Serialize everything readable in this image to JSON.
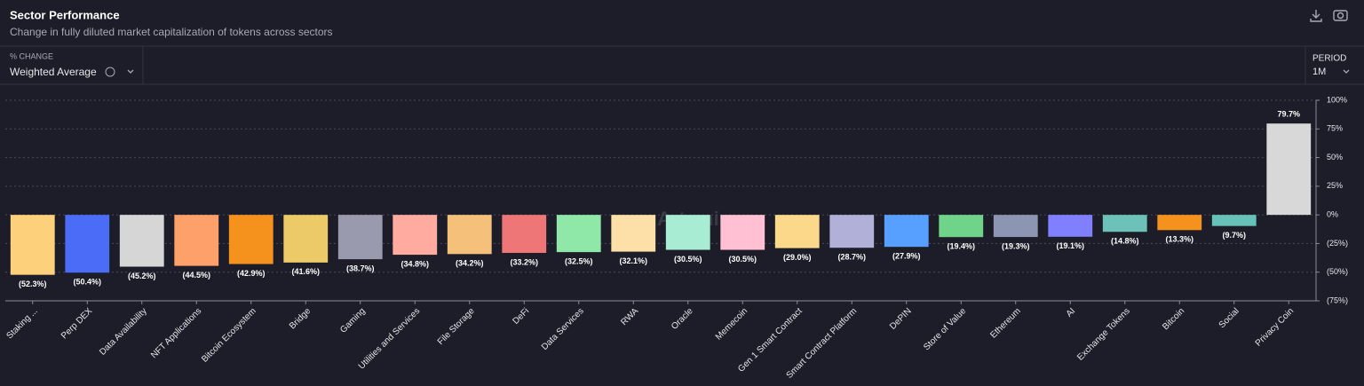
{
  "chart_data": {
    "type": "bar",
    "title": "Sector Performance",
    "subtitle": "Change in fully diluted market capitalization of tokens across sectors",
    "watermark": "Artemis",
    "categories": [
      "Staking ...",
      "Perp DEX",
      "Data Availability",
      "NFT Applications",
      "Bitcoin Ecosystem",
      "Bridge",
      "Gaming",
      "Utilities and Services",
      "File Storage",
      "DeFi",
      "Data Services",
      "RWA",
      "Oracle",
      "Memecoin",
      "Gen 1 Smart Contract",
      "Smart Contract Platform",
      "DePIN",
      "Store of Value",
      "Ethereum",
      "AI",
      "Exchange Tokens",
      "Bitcoin",
      "Social",
      "Privacy Coin"
    ],
    "values": [
      -52.3,
      -50.4,
      -45.2,
      -44.5,
      -42.9,
      -41.6,
      -38.7,
      -34.8,
      -34.2,
      -33.2,
      -32.5,
      -32.1,
      -30.5,
      -30.5,
      -29.0,
      -28.7,
      -27.9,
      -19.4,
      -19.3,
      -19.1,
      -14.8,
      -13.3,
      -9.7,
      79.7
    ],
    "value_labels": [
      "(52.3%)",
      "(50.4%)",
      "(45.2%)",
      "(44.5%)",
      "(42.9%)",
      "(41.6%)",
      "(38.7%)",
      "(34.8%)",
      "(34.2%)",
      "(33.2%)",
      "(32.5%)",
      "(32.1%)",
      "(30.5%)",
      "(30.5%)",
      "(29.0%)",
      "(28.7%)",
      "(27.9%)",
      "(19.4%)",
      "(19.3%)",
      "(19.1%)",
      "(14.8%)",
      "(13.3%)",
      "(9.7%)",
      "79.7%"
    ],
    "colors": [
      "#fdd07c",
      "#4a6cf7",
      "#d6d6d6",
      "#fda06a",
      "#f5921e",
      "#ecca68",
      "#9a9aae",
      "#ffaba0",
      "#f5c07a",
      "#ef7676",
      "#8fe8a8",
      "#fde0a8",
      "#a8ecd4",
      "#ffc0d4",
      "#fcd98a",
      "#b0b0d8",
      "#58a0ff",
      "#6fd48a",
      "#8c96b2",
      "#8080ff",
      "#6cc2b8",
      "#f5921e",
      "#66c2b8",
      "#d8d8d8"
    ],
    "ylim": [
      -75,
      100
    ],
    "yticks": [
      {
        "value": -75,
        "label": "(75%)"
      },
      {
        "value": -50,
        "label": "(50%)"
      },
      {
        "value": -25,
        "label": "(25%)"
      },
      {
        "value": 0,
        "label": "0%"
      },
      {
        "value": 25,
        "label": "25%"
      },
      {
        "value": 50,
        "label": "50%"
      },
      {
        "value": 75,
        "label": "75%"
      },
      {
        "value": 100,
        "label": "100%"
      }
    ],
    "grid": true
  },
  "controls": {
    "change_label": "% CHANGE",
    "change_value": "Weighted Average",
    "period_label": "PERIOD",
    "period_value": "1M"
  }
}
